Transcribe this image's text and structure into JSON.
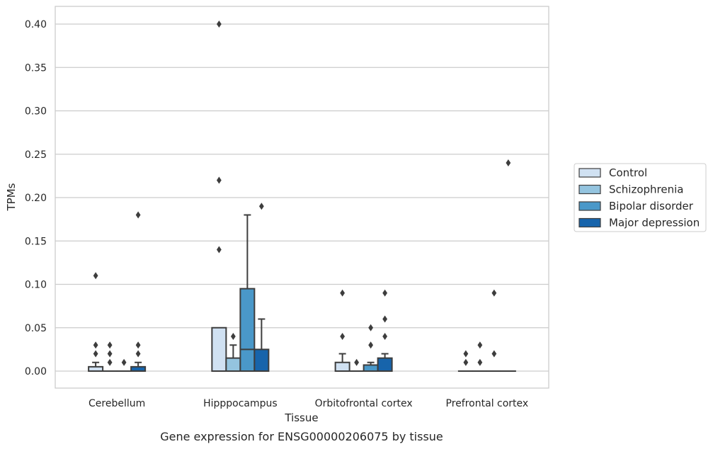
{
  "caption": "Gene expression for ENSG00000206075 by tissue",
  "chart_data": {
    "type": "box",
    "xlabel": "Tissue",
    "ylabel": "TPMs",
    "ylim": [
      -0.019,
      0.42
    ],
    "yticks": [
      "0.00",
      "0.05",
      "0.10",
      "0.15",
      "0.20",
      "0.25",
      "0.30",
      "0.35",
      "0.40"
    ],
    "categories": [
      "Cerebellum",
      "Hipppocampus",
      "Orbitofrontal cortex",
      "Prefrontal cortex"
    ],
    "grid": "horizontal",
    "legend_position": "right",
    "series": [
      {
        "name": "Control",
        "color": "#d0e1f2",
        "boxes": [
          {
            "q1": 0,
            "median": 0,
            "q3": 0.005,
            "whisker_low": 0,
            "whisker_high": 0.01,
            "outliers": [
              0.11,
              0.03,
              0.02
            ]
          },
          {
            "q1": 0,
            "median": 0,
            "q3": 0.05,
            "whisker_low": 0,
            "whisker_high": 0.05,
            "outliers": [
              0.4,
              0.22,
              0.14
            ]
          },
          {
            "q1": 0,
            "median": 0,
            "q3": 0.01,
            "whisker_low": 0,
            "whisker_high": 0.02,
            "outliers": [
              0.09,
              0.04
            ]
          },
          {
            "q1": 0,
            "median": 0,
            "q3": 0,
            "whisker_low": 0,
            "whisker_high": 0,
            "outliers": [
              0.02,
              0.01
            ]
          }
        ]
      },
      {
        "name": "Schizophrenia",
        "color": "#94c4df",
        "boxes": [
          {
            "q1": 0,
            "median": 0,
            "q3": 0,
            "whisker_low": 0,
            "whisker_high": 0,
            "outliers": [
              0.03,
              0.02,
              0.01
            ]
          },
          {
            "q1": 0,
            "median": 0,
            "q3": 0.015,
            "whisker_low": 0,
            "whisker_high": 0.03,
            "outliers": [
              0.04
            ]
          },
          {
            "q1": 0,
            "median": 0,
            "q3": 0,
            "whisker_low": 0,
            "whisker_high": 0,
            "outliers": [
              0.01
            ]
          },
          {
            "q1": 0,
            "median": 0,
            "q3": 0,
            "whisker_low": 0,
            "whisker_high": 0,
            "outliers": [
              0.03,
              0.01
            ]
          }
        ]
      },
      {
        "name": "Bipolar disorder",
        "color": "#4a98c9",
        "boxes": [
          {
            "q1": 0,
            "median": 0,
            "q3": 0,
            "whisker_low": 0,
            "whisker_high": 0,
            "outliers": [
              0.01
            ]
          },
          {
            "q1": 0,
            "median": 0.025,
            "q3": 0.095,
            "whisker_low": 0,
            "whisker_high": 0.18,
            "outliers": []
          },
          {
            "q1": 0,
            "median": 0,
            "q3": 0.007,
            "whisker_low": 0,
            "whisker_high": 0.01,
            "outliers": [
              0.05,
              0.03
            ]
          },
          {
            "q1": 0,
            "median": 0,
            "q3": 0,
            "whisker_low": 0,
            "whisker_high": 0,
            "outliers": [
              0.09,
              0.02
            ]
          }
        ]
      },
      {
        "name": "Major depression",
        "color": "#1764ab",
        "boxes": [
          {
            "q1": 0,
            "median": 0,
            "q3": 0.005,
            "whisker_low": 0,
            "whisker_high": 0.01,
            "outliers": [
              0.18,
              0.03,
              0.02
            ]
          },
          {
            "q1": 0,
            "median": 0,
            "q3": 0.025,
            "whisker_low": 0,
            "whisker_high": 0.06,
            "outliers": [
              0.19
            ]
          },
          {
            "q1": 0,
            "median": 0,
            "q3": 0.015,
            "whisker_low": 0,
            "whisker_high": 0.02,
            "outliers": [
              0.09,
              0.06,
              0.04
            ]
          },
          {
            "q1": 0,
            "median": 0,
            "q3": 0,
            "whisker_low": 0,
            "whisker_high": 0,
            "outliers": [
              0.24
            ]
          }
        ]
      }
    ]
  }
}
